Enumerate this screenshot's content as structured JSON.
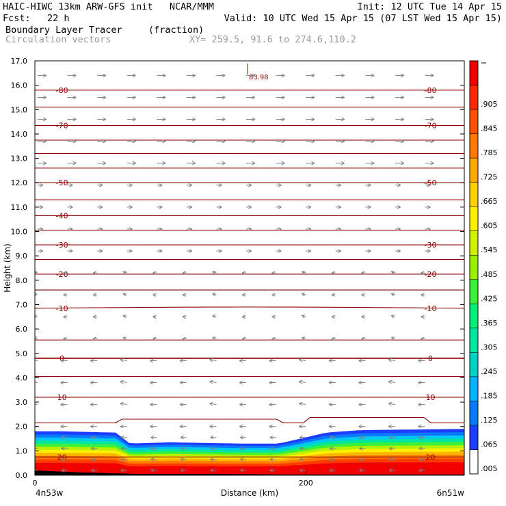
{
  "header": {
    "title_left": "HAIC-HIWC 13km ARW-GFS init   NCAR/MMM",
    "init": "Init: 12 UTC Tue 14 Apr 15",
    "fcst": "Fcst:   22 h",
    "valid": "Valid: 10 UTC Wed 15 Apr 15 (07 LST Wed 15 Apr 15)",
    "field_name": "Boundary Layer Tracer",
    "field_units": "(fraction)",
    "overlay_name": "Circulation vectors",
    "xy_readout": "XY= 259.5, 91.6 to 274.6,110.2"
  },
  "colors": {
    "contour": "#8b0000",
    "vector": "#808080",
    "background": "#ffffff"
  },
  "chart_data": {
    "type": "heatmap",
    "xlabel": "Distance (km)",
    "ylabel": "Height (km)",
    "xlim": [
      0,
      317
    ],
    "ylim": [
      0,
      17
    ],
    "x_ticks": [
      0,
      200
    ],
    "x_tick_labels": [
      "0",
      "200"
    ],
    "x_end_labels": {
      "left": "4n53w",
      "right": "6n51w"
    },
    "y_ticks": [
      0,
      1,
      2,
      3,
      4,
      5,
      6,
      7,
      8,
      9,
      10,
      11,
      12,
      13,
      14,
      15,
      16,
      17
    ],
    "y_tick_labels": [
      "0.0",
      "1.0",
      "2.0",
      "3.0",
      "4.0",
      "5.0",
      "6.0",
      "7.0",
      "8.0",
      "9.0",
      "10.0",
      "11.0",
      "12.0",
      "13.0",
      "14.0",
      "15.0",
      "16.0",
      "17.0"
    ],
    "colorbar": {
      "labels": [
        ".005",
        ".065",
        ".125",
        ".185",
        ".245",
        ".305",
        ".365",
        ".425",
        ".485",
        ".545",
        ".605",
        ".665",
        ".725",
        ".785",
        ".845",
        ".905"
      ],
      "colors": [
        "#ffffff",
        "#1e3cff",
        "#0a78ff",
        "#00b4ff",
        "#00d2c8",
        "#00e6a0",
        "#00f078",
        "#3cf03c",
        "#96f000",
        "#d2f000",
        "#fff000",
        "#ffd200",
        "#ffaa00",
        "#ff7800",
        "#ff5000",
        "#ff2800",
        "#f00000"
      ]
    },
    "boundary_layer_top_km": [
      [
        0,
        1.8
      ],
      [
        20,
        1.8
      ],
      [
        60,
        1.75
      ],
      [
        70,
        1.3
      ],
      [
        100,
        1.35
      ],
      [
        150,
        1.3
      ],
      [
        180,
        1.3
      ],
      [
        200,
        1.55
      ],
      [
        215,
        1.75
      ],
      [
        240,
        1.85
      ],
      [
        317,
        1.9
      ]
    ],
    "max_label": "83.98",
    "temperature_contours": [
      {
        "level": -80,
        "height_km": 15.8,
        "labels": [
          "-80",
          "-80"
        ]
      },
      {
        "level": -75,
        "height_km": 15.1,
        "labels": []
      },
      {
        "level": -70,
        "height_km": 14.35,
        "labels": [
          "-70",
          "-70"
        ]
      },
      {
        "level": -65,
        "height_km": 13.75,
        "labels": []
      },
      {
        "level": -60,
        "height_km": 13.2,
        "labels": []
      },
      {
        "level": -55,
        "height_km": 12.6,
        "labels": []
      },
      {
        "level": -50,
        "height_km": 12.0,
        "labels": [
          "-50",
          "-50"
        ]
      },
      {
        "level": -45,
        "height_km": 11.3,
        "labels": []
      },
      {
        "level": -40,
        "height_km": 10.65,
        "labels": [
          "-40"
        ]
      },
      {
        "level": -35,
        "height_km": 10.05,
        "labels": []
      },
      {
        "level": -30,
        "height_km": 9.45,
        "labels": [
          "-30",
          "-30"
        ]
      },
      {
        "level": -25,
        "height_km": 8.85,
        "labels": []
      },
      {
        "level": -20,
        "height_km": 8.25,
        "labels": [
          "-20",
          "-20"
        ]
      },
      {
        "level": -15,
        "height_km": 7.6,
        "labels": []
      },
      {
        "level": -10,
        "height_km": 6.85,
        "labels": [
          "-10",
          "-10"
        ]
      },
      {
        "level": -5,
        "height_km": 5.55,
        "labels": []
      },
      {
        "level": 0,
        "height_km": 4.8,
        "labels": [
          "0",
          "0"
        ]
      },
      {
        "level": 5,
        "height_km": 4.05,
        "labels": []
      },
      {
        "level": 10,
        "height_km": 3.2,
        "labels": [
          "10",
          "10"
        ]
      },
      {
        "level": 15,
        "height_km": 2.15,
        "labels": []
      },
      {
        "level": 20,
        "height_km": 0.75,
        "labels": [
          "20",
          "20"
        ]
      }
    ]
  }
}
